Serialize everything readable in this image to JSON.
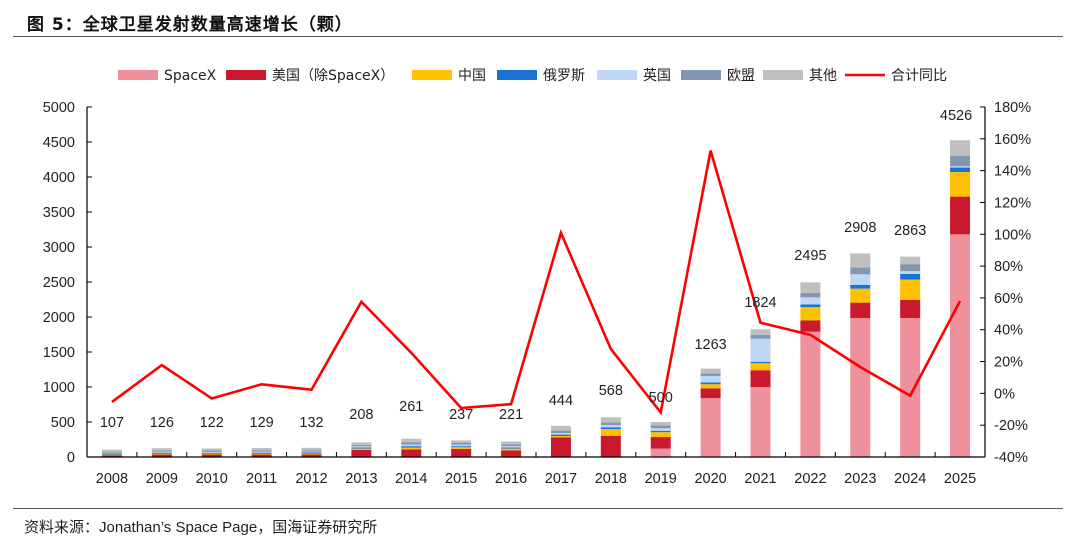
{
  "header": {
    "title": "图 5：全球卫星发射数量高速增长（颗）"
  },
  "footer": {
    "source_prefix": "资料来源：",
    "source_latin": "Jonathan’s Space Page",
    "source_suffix": "，国海证券研究所"
  },
  "chart_data": {
    "type": "bar",
    "stacked": true,
    "title": "全球卫星发射数量高速增长（颗）",
    "xlabel": "",
    "ylabel": "",
    "categories": [
      "2008",
      "2009",
      "2010",
      "2011",
      "2012",
      "2013",
      "2014",
      "2015",
      "2016",
      "2017",
      "2018",
      "2019",
      "2020",
      "2021",
      "2022",
      "2023",
      "2024",
      "2025"
    ],
    "totals": [
      107,
      126,
      122,
      129,
      132,
      208,
      261,
      237,
      221,
      444,
      568,
      500,
      1263,
      1824,
      2495,
      2908,
      2863,
      4526
    ],
    "series": [
      {
        "name": "SpaceX",
        "color": "#EE919D",
        "values": [
          0,
          0,
          0,
          0,
          0,
          0,
          0,
          0,
          0,
          0,
          0,
          120,
          840,
          1000,
          1790,
          1985,
          1985,
          3180
        ]
      },
      {
        "name": "美国（除SpaceX）",
        "color": "#C8192E",
        "values": [
          25,
          35,
          35,
          35,
          35,
          100,
          110,
          115,
          95,
          280,
          300,
          165,
          140,
          240,
          160,
          220,
          260,
          540
        ]
      },
      {
        "name": "中国",
        "color": "#FFC000",
        "values": [
          10,
          12,
          12,
          12,
          14,
          20,
          25,
          25,
          25,
          20,
          100,
          70,
          60,
          100,
          190,
          200,
          290,
          350
        ]
      },
      {
        "name": "俄罗斯",
        "color": "#1873D3",
        "values": [
          15,
          15,
          12,
          15,
          15,
          15,
          20,
          15,
          15,
          20,
          25,
          20,
          25,
          20,
          40,
          55,
          80,
          65
        ]
      },
      {
        "name": "英国",
        "color": "#BDD7F5",
        "values": [
          12,
          14,
          13,
          14,
          14,
          18,
          22,
          20,
          20,
          22,
          30,
          35,
          90,
          330,
          100,
          150,
          40,
          20
        ]
      },
      {
        "name": "欧盟",
        "color": "#8497B0",
        "values": [
          15,
          20,
          20,
          20,
          20,
          20,
          35,
          30,
          25,
          35,
          40,
          40,
          40,
          55,
          65,
          100,
          100,
          150
        ]
      },
      {
        "name": "其他",
        "color": "#BFBFBF",
        "values": [
          30,
          30,
          30,
          33,
          34,
          35,
          49,
          32,
          41,
          67,
          73,
          50,
          68,
          79,
          150,
          198,
          108,
          221
        ]
      }
    ],
    "line_series": {
      "name": "合计同比",
      "color": "#FF0000",
      "axis": "right",
      "values": [
        -5.4,
        17.8,
        -3.2,
        5.7,
        2.3,
        57.6,
        25.5,
        -9.2,
        -6.8,
        100.9,
        27.9,
        -12.0,
        152.6,
        44.4,
        36.8,
        16.6,
        -1.5,
        58.1
      ]
    },
    "left_axis": {
      "ylim": [
        0,
        5000
      ],
      "ticks": [
        "0",
        "500",
        "1000",
        "1500",
        "2000",
        "2500",
        "3000",
        "3500",
        "4000",
        "4500",
        "5000"
      ]
    },
    "right_axis": {
      "ylim": [
        -40,
        180
      ],
      "ticks": [
        "-40%",
        "-20%",
        "0%",
        "20%",
        "40%",
        "60%",
        "80%",
        "100%",
        "120%",
        "140%",
        "160%",
        "180%"
      ]
    },
    "legend": {
      "position": "top",
      "entries": [
        "SpaceX",
        "美国（除SpaceX）",
        "中国",
        "俄罗斯",
        "英国",
        "欧盟",
        "其他",
        "合计同比"
      ]
    },
    "grid": false
  }
}
